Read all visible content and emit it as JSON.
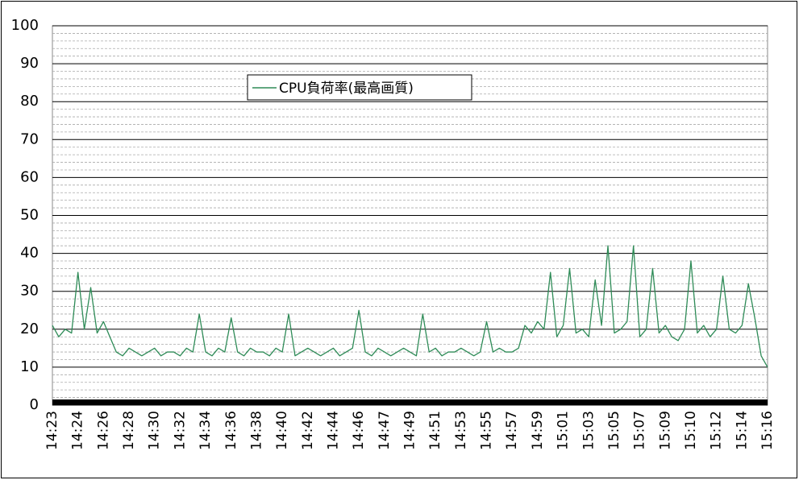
{
  "chart_data": {
    "type": "line",
    "categories": [
      "14:23",
      null,
      null,
      null,
      "14:24",
      null,
      null,
      null,
      "14:26",
      null,
      null,
      null,
      "14:28",
      null,
      null,
      null,
      "14:30",
      null,
      null,
      null,
      "14:32",
      null,
      null,
      null,
      "14:34",
      null,
      null,
      null,
      "14:36",
      null,
      null,
      null,
      "14:38",
      null,
      null,
      null,
      "14:40",
      null,
      null,
      null,
      "14:42",
      null,
      null,
      null,
      "14:44",
      null,
      null,
      null,
      "14:46",
      null,
      null,
      null,
      "14:47",
      null,
      null,
      null,
      "14:49",
      null,
      null,
      null,
      "14:51",
      null,
      null,
      null,
      "14:53",
      null,
      null,
      null,
      "14:55",
      null,
      null,
      null,
      "14:57",
      null,
      null,
      null,
      "14:59",
      null,
      null,
      null,
      "15:01",
      null,
      null,
      null,
      "15:03",
      null,
      null,
      null,
      "15:05",
      null,
      null,
      null,
      "15:07",
      null,
      null,
      null,
      "15:09",
      null,
      null,
      null,
      "15:10",
      null,
      null,
      null,
      "15:12",
      null,
      null,
      null,
      "15:14",
      null,
      null,
      null,
      "15:16"
    ],
    "series": [
      {
        "name": "CPU負荷率(最高画質)",
        "color": "#2e8b57",
        "values": [
          21,
          18,
          20,
          19,
          35,
          20,
          31,
          19,
          22,
          18,
          14,
          13,
          15,
          14,
          13,
          14,
          15,
          13,
          14,
          14,
          13,
          15,
          14,
          24,
          14,
          13,
          15,
          14,
          23,
          14,
          13,
          15,
          14,
          14,
          13,
          15,
          14,
          24,
          13,
          14,
          15,
          14,
          13,
          14,
          15,
          13,
          14,
          15,
          25,
          14,
          13,
          15,
          14,
          13,
          14,
          15,
          14,
          13,
          24,
          14,
          15,
          13,
          14,
          14,
          15,
          14,
          13,
          14,
          22,
          14,
          15,
          14,
          14,
          15,
          21,
          19,
          22,
          20,
          35,
          18,
          21,
          36,
          19,
          20,
          18,
          33,
          21,
          42,
          19,
          20,
          22,
          42,
          18,
          20,
          36,
          19,
          21,
          18,
          17,
          20,
          38,
          19,
          21,
          18,
          20,
          34,
          20,
          19,
          21,
          32,
          23,
          13,
          10
        ]
      }
    ],
    "ylim": [
      0,
      100
    ],
    "yticks": [
      0,
      10,
      20,
      30,
      40,
      50,
      60,
      70,
      80,
      90,
      100
    ],
    "minor_yticks": [
      2,
      4,
      6,
      8,
      12,
      14,
      16,
      18,
      22,
      24,
      26,
      28,
      32,
      34,
      36,
      38,
      42,
      44,
      46,
      48,
      52,
      54,
      56,
      58,
      62,
      64,
      66,
      68,
      72,
      74,
      76,
      78,
      82,
      84,
      86,
      88,
      92,
      94,
      96,
      98
    ],
    "grid": true,
    "legend": "upper-left"
  }
}
